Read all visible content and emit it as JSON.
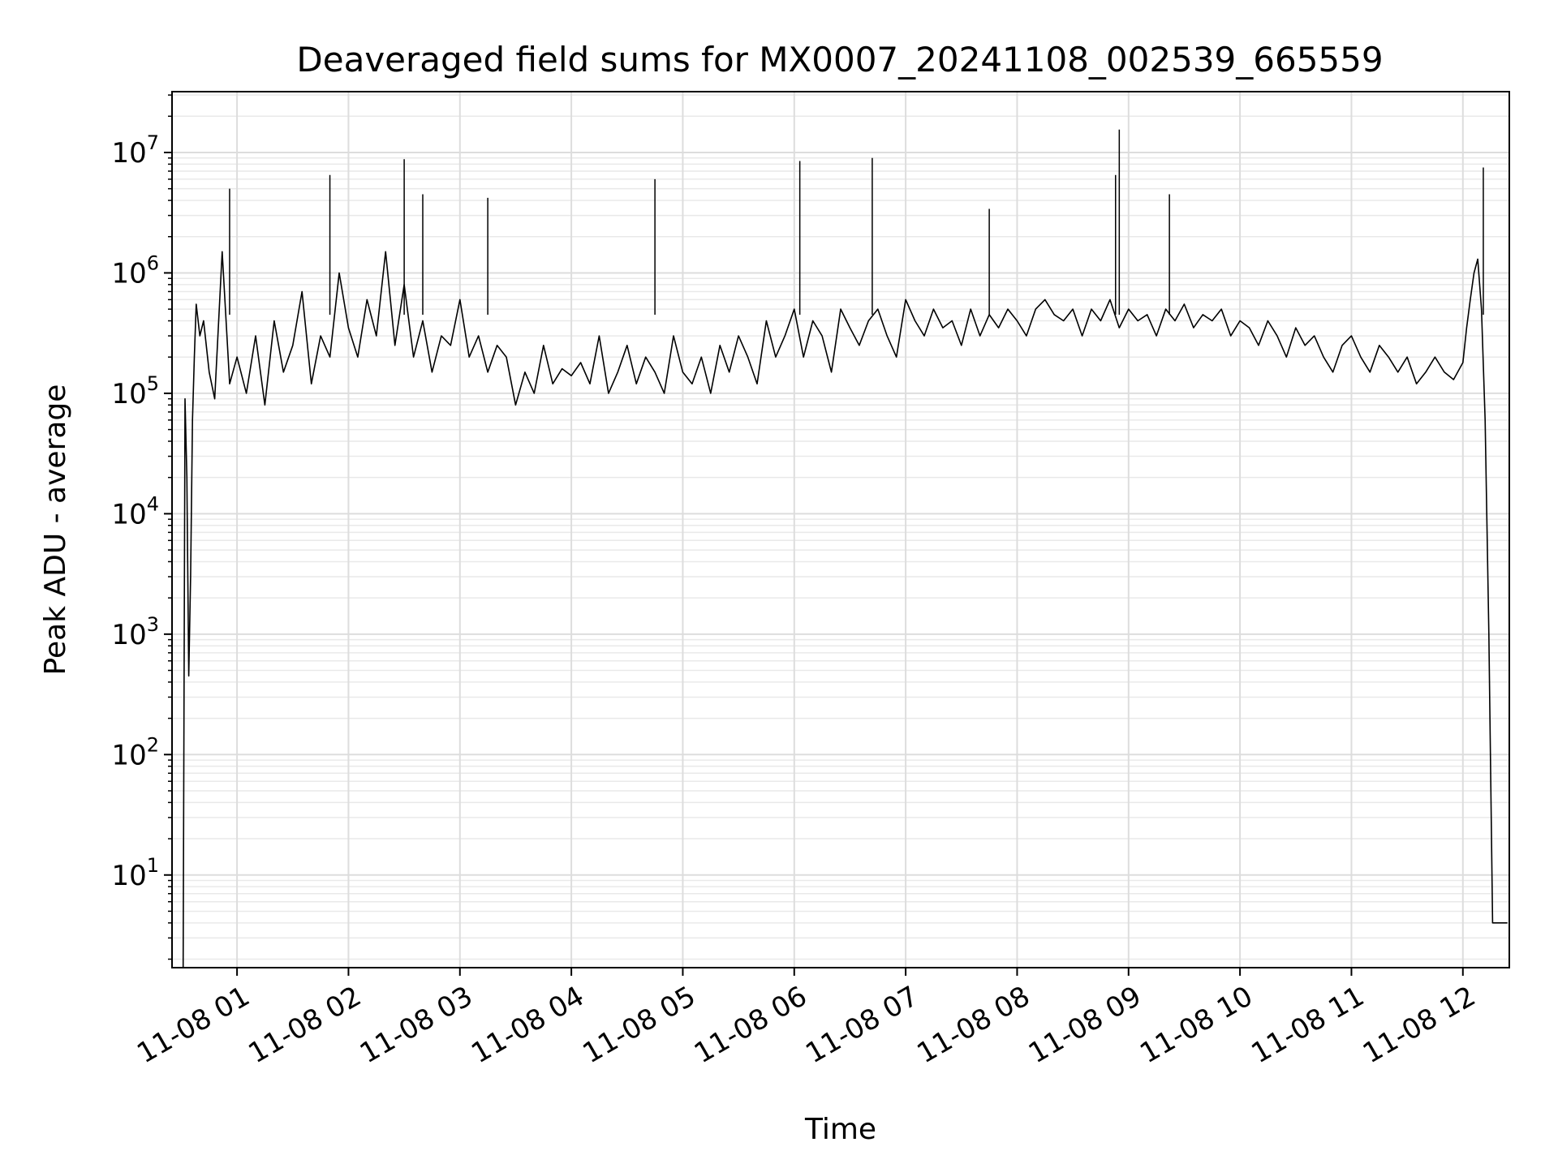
{
  "chart_data": {
    "type": "line",
    "title": "Deaveraged field sums for MX0007_20241108_002539_665559",
    "xlabel": "Time",
    "ylabel": "Peak ADU - average",
    "yscale": "log",
    "xlim": [
      "2024-11-08 00:25",
      "2024-11-08 12:25"
    ],
    "ylim": [
      1.7,
      32000000
    ],
    "grid": true,
    "x_ticks": [
      "11-08 01",
      "11-08 02",
      "11-08 03",
      "11-08 04",
      "11-08 05",
      "11-08 06",
      "11-08 07",
      "11-08 08",
      "11-08 09",
      "11-08 10",
      "11-08 11",
      "11-08 12"
    ],
    "y_ticks": [
      {
        "base": "10",
        "exp": "1",
        "value": 10
      },
      {
        "base": "10",
        "exp": "2",
        "value": 100
      },
      {
        "base": "10",
        "exp": "3",
        "value": 1000
      },
      {
        "base": "10",
        "exp": "4",
        "value": 10000
      },
      {
        "base": "10",
        "exp": "5",
        "value": 100000
      },
      {
        "base": "10",
        "exp": "6",
        "value": 1000000
      },
      {
        "base": "10",
        "exp": "7",
        "value": 10000000
      }
    ],
    "line_color": "#000000",
    "series": [
      {
        "name": "",
        "x": [
          "00:31",
          "00:32",
          "00:33",
          "00:34",
          "00:35",
          "00:36",
          "00:37",
          "00:38",
          "00:40",
          "00:42",
          "00:45",
          "00:48",
          "00:52",
          "00:56",
          "01:00",
          "01:05",
          "01:10",
          "01:15",
          "01:20",
          "01:25",
          "01:30",
          "01:35",
          "01:40",
          "01:45",
          "01:50",
          "01:55",
          "02:00",
          "02:05",
          "02:10",
          "02:15",
          "02:20",
          "02:25",
          "02:30",
          "02:35",
          "02:40",
          "02:45",
          "02:50",
          "02:55",
          "03:00",
          "03:05",
          "03:10",
          "03:15",
          "03:20",
          "03:25",
          "03:30",
          "03:35",
          "03:40",
          "03:45",
          "03:50",
          "03:55",
          "04:00",
          "04:05",
          "04:10",
          "04:15",
          "04:20",
          "04:25",
          "04:30",
          "04:35",
          "04:40",
          "04:45",
          "04:50",
          "04:55",
          "05:00",
          "05:05",
          "05:10",
          "05:15",
          "05:20",
          "05:25",
          "05:30",
          "05:35",
          "05:40",
          "05:45",
          "05:50",
          "05:55",
          "06:00",
          "06:05",
          "06:10",
          "06:15",
          "06:20",
          "06:25",
          "06:30",
          "06:35",
          "06:40",
          "06:45",
          "06:50",
          "06:55",
          "07:00",
          "07:05",
          "07:10",
          "07:15",
          "07:20",
          "07:25",
          "07:30",
          "07:35",
          "07:40",
          "07:45",
          "07:50",
          "07:55",
          "08:00",
          "08:05",
          "08:10",
          "08:15",
          "08:20",
          "08:25",
          "08:30",
          "08:35",
          "08:40",
          "08:45",
          "08:50",
          "08:55",
          "09:00",
          "09:05",
          "09:10",
          "09:15",
          "09:20",
          "09:25",
          "09:30",
          "09:35",
          "09:40",
          "09:45",
          "09:50",
          "09:55",
          "10:00",
          "10:05",
          "10:10",
          "10:15",
          "10:20",
          "10:25",
          "10:30",
          "10:35",
          "10:40",
          "10:45",
          "10:50",
          "10:55",
          "11:00",
          "11:05",
          "11:10",
          "11:15",
          "11:20",
          "11:25",
          "11:30",
          "11:35",
          "11:40",
          "11:45",
          "11:50",
          "11:55",
          "12:00",
          "12:02",
          "12:04",
          "12:06",
          "12:08",
          "12:10",
          "12:12",
          "12:14",
          "12:16",
          "12:18",
          "12:20",
          "12:22",
          "12:24"
        ],
        "y": [
          1.7,
          90000,
          20000,
          450,
          3000,
          60000,
          200000,
          550000,
          300000,
          400000,
          150000,
          90000,
          1500000,
          120000,
          200000,
          100000,
          300000,
          80000,
          400000,
          150000,
          250000,
          700000,
          120000,
          300000,
          200000,
          1000000,
          350000,
          200000,
          600000,
          300000,
          1500000,
          250000,
          800000,
          200000,
          400000,
          150000,
          300000,
          250000,
          600000,
          200000,
          300000,
          150000,
          250000,
          200000,
          80000,
          150000,
          100000,
          250000,
          120000,
          160000,
          140000,
          180000,
          120000,
          300000,
          100000,
          150000,
          250000,
          120000,
          200000,
          150000,
          100000,
          300000,
          150000,
          120000,
          200000,
          100000,
          250000,
          150000,
          300000,
          200000,
          120000,
          400000,
          200000,
          300000,
          500000,
          200000,
          400000,
          300000,
          150000,
          500000,
          350000,
          250000,
          400000,
          500000,
          300000,
          200000,
          600000,
          400000,
          300000,
          500000,
          350000,
          400000,
          250000,
          500000,
          300000,
          450000,
          350000,
          500000,
          400000,
          300000,
          500000,
          600000,
          450000,
          400000,
          500000,
          300000,
          500000,
          400000,
          600000,
          350000,
          500000,
          400000,
          450000,
          300000,
          500000,
          400000,
          550000,
          350000,
          450000,
          400000,
          500000,
          300000,
          400000,
          350000,
          250000,
          400000,
          300000,
          200000,
          350000,
          250000,
          300000,
          200000,
          150000,
          250000,
          300000,
          200000,
          150000,
          250000,
          200000,
          150000,
          200000,
          120000,
          150000,
          200000,
          150000,
          130000,
          180000,
          350000,
          600000,
          1000000,
          1300000,
          500000,
          60000,
          1000,
          4,
          4,
          4,
          4,
          4
        ]
      }
    ],
    "spikes": [
      {
        "x": "00:56",
        "y": 5000000
      },
      {
        "x": "01:50",
        "y": 6500000
      },
      {
        "x": "02:30",
        "y": 8800000
      },
      {
        "x": "02:40",
        "y": 4500000
      },
      {
        "x": "03:15",
        "y": 4200000
      },
      {
        "x": "04:45",
        "y": 6000000
      },
      {
        "x": "06:03",
        "y": 8500000
      },
      {
        "x": "06:42",
        "y": 9000000
      },
      {
        "x": "07:45",
        "y": 3400000
      },
      {
        "x": "08:53",
        "y": 6500000
      },
      {
        "x": "08:55",
        "y": 15500000
      },
      {
        "x": "09:22",
        "y": 4500000
      },
      {
        "x": "12:11",
        "y": 7500000
      }
    ]
  }
}
